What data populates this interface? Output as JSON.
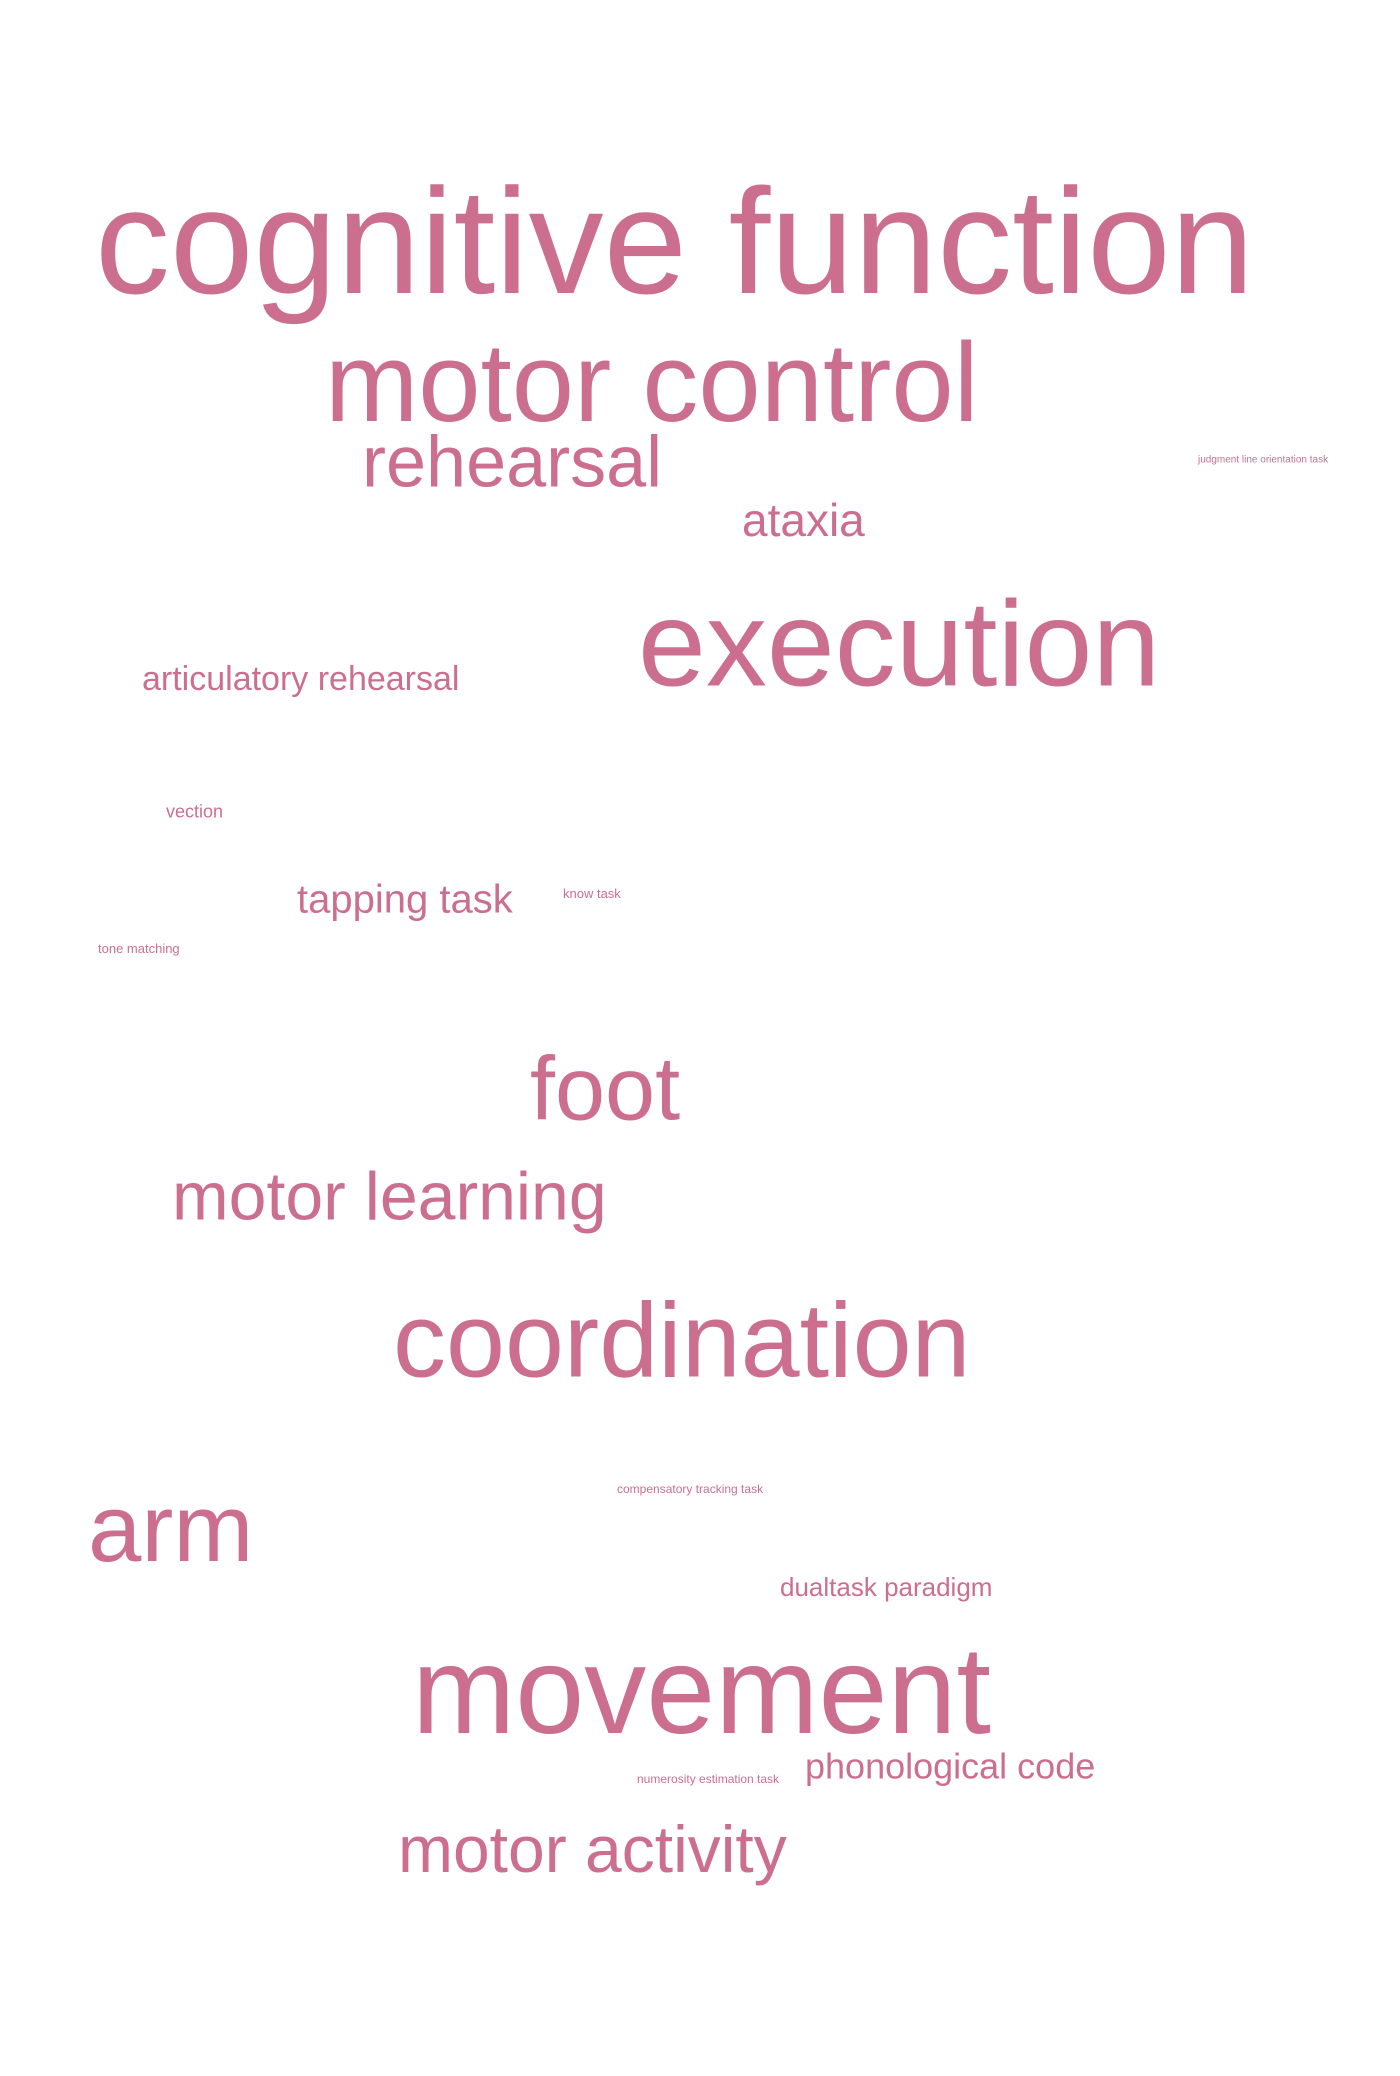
{
  "word_cloud": {
    "color": "#cc6f8f",
    "words": {
      "cognitive_function": "cognitive function",
      "motor_control": "motor control",
      "rehearsal": "rehearsal",
      "ataxia": "ataxia",
      "line_orientation": "judgment line orientation task",
      "execution": "execution",
      "articulatory_rehearsal": "articulatory rehearsal",
      "vection": "vection",
      "tapping_task": "tapping task",
      "know_task": "know task",
      "tone_matching": "tone matching",
      "foot": "foot",
      "motor_learning": "motor learning",
      "coordination": "coordination",
      "compensatory_tracking_task": "compensatory tracking task",
      "arm": "arm",
      "dualtask_paradigm": "dualtask paradigm",
      "movement": "movement",
      "numerosity_estimation_task": "numerosity estimation task",
      "phonological_code": "phonological code",
      "motor_activity": "motor activity"
    }
  }
}
